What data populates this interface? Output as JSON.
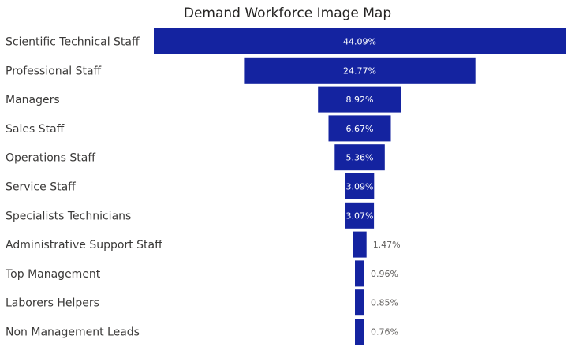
{
  "chart_data": {
    "type": "funnel",
    "title": "Demand Workforce Image Map",
    "bar_color": "#1423a0",
    "categories": [
      "Scientific Technical Staff",
      "Professional Staff",
      "Managers",
      "Sales Staff",
      "Operations Staff",
      "Service Staff",
      "Specialists Technicians",
      "Administrative Support Staff",
      "Top Management",
      "Laborers Helpers",
      "Non Management Leads"
    ],
    "values": [
      44.09,
      24.77,
      8.92,
      6.67,
      5.36,
      3.09,
      3.07,
      1.47,
      0.96,
      0.85,
      0.76
    ],
    "value_labels": [
      "44.09%",
      "24.77%",
      "8.92%",
      "6.67%",
      "5.36%",
      "3.09%",
      "3.07%",
      "1.47%",
      "0.96%",
      "0.85%",
      "0.76%"
    ]
  }
}
